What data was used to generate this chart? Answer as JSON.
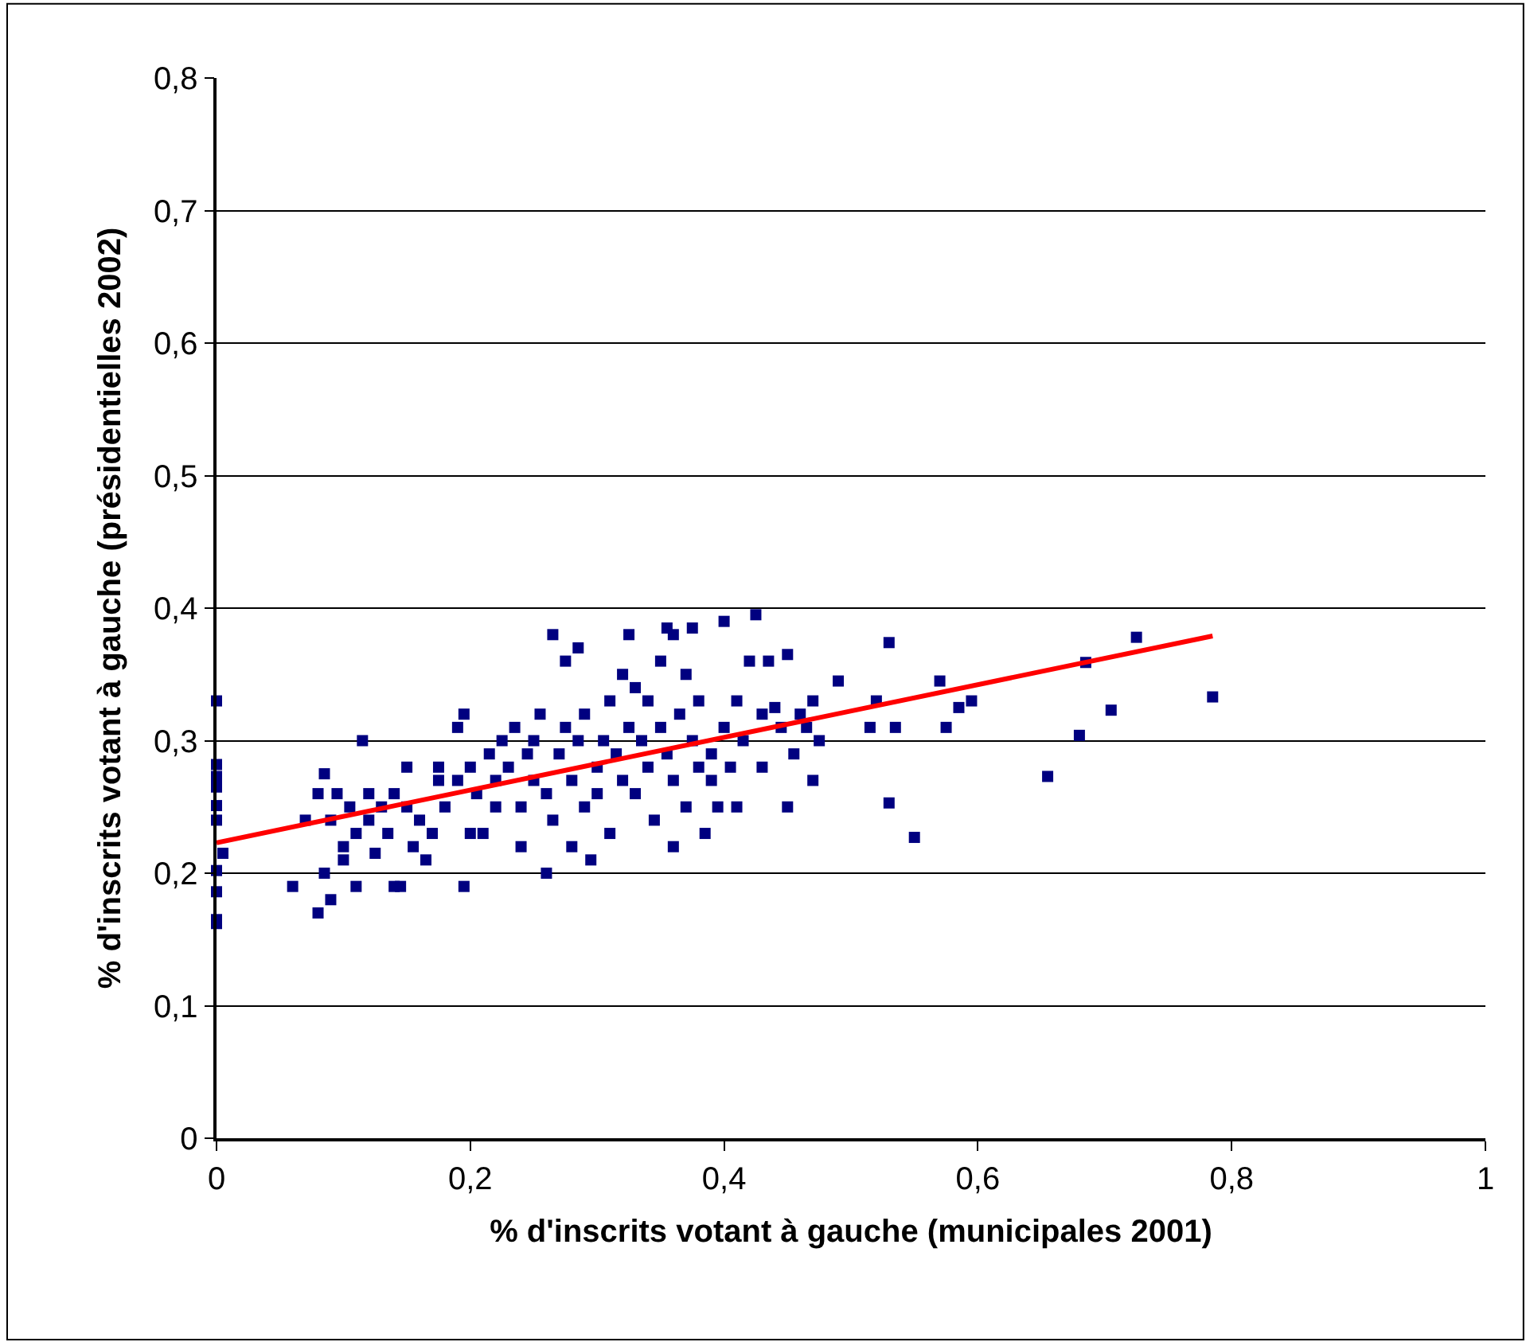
{
  "chart_data": {
    "type": "scatter",
    "xlabel": "% d'inscrits votant à gauche (municipales 2001)",
    "ylabel": "% d'inscrits votant à gauche (présidentielles 2002)",
    "xlim": [
      0,
      1
    ],
    "xticks": [
      0,
      {
        "value": 0.2,
        "label": "0,2"
      },
      {
        "value": 0.4,
        "label": "0,4"
      },
      {
        "value": 0.6,
        "label": "0,6"
      },
      {
        "value": 0.8,
        "label": "0,8"
      },
      1
    ],
    "ylim": [
      0,
      0.8
    ],
    "yticks": [
      0,
      {
        "value": 0.1,
        "label": "0,1"
      },
      {
        "value": 0.2,
        "label": "0,2"
      },
      {
        "value": 0.3,
        "label": "0,3"
      },
      {
        "value": 0.4,
        "label": "0,4"
      },
      {
        "value": 0.5,
        "label": "0,5"
      },
      {
        "value": 0.6,
        "label": "0,6"
      },
      {
        "value": 0.7,
        "label": "0,7"
      },
      {
        "value": 0.8,
        "label": "0,8"
      }
    ],
    "grid": "y",
    "marker": "square",
    "series": [
      {
        "color": "#000080",
        "x": [
          0,
          0,
          0,
          0,
          0,
          0,
          0.005,
          0,
          0,
          0,
          0,
          0.06,
          0.07,
          0.08,
          0.08,
          0.085,
          0.09,
          0.09,
          0.085,
          0.095,
          0.1,
          0.1,
          0.105,
          0.11,
          0.11,
          0.115,
          0.12,
          0.12,
          0.125,
          0.13,
          0.135,
          0.14,
          0.145,
          0.14,
          0.15,
          0.15,
          0.155,
          0.16,
          0.165,
          0.17,
          0.175,
          0.175,
          0.18,
          0.19,
          0.19,
          0.195,
          0.195,
          0.2,
          0.2,
          0.205,
          0.21,
          0.215,
          0.22,
          0.22,
          0.225,
          0.23,
          0.235,
          0.24,
          0.24,
          0.245,
          0.25,
          0.25,
          0.255,
          0.26,
          0.26,
          0.265,
          0.265,
          0.27,
          0.275,
          0.275,
          0.28,
          0.28,
          0.285,
          0.285,
          0.29,
          0.29,
          0.295,
          0.3,
          0.3,
          0.305,
          0.31,
          0.31,
          0.315,
          0.32,
          0.32,
          0.325,
          0.325,
          0.33,
          0.33,
          0.335,
          0.34,
          0.34,
          0.345,
          0.35,
          0.35,
          0.355,
          0.355,
          0.36,
          0.36,
          0.36,
          0.365,
          0.37,
          0.37,
          0.375,
          0.375,
          0.38,
          0.38,
          0.385,
          0.39,
          0.39,
          0.395,
          0.4,
          0.4,
          0.405,
          0.41,
          0.41,
          0.415,
          0.42,
          0.425,
          0.43,
          0.43,
          0.435,
          0.44,
          0.445,
          0.45,
          0.45,
          0.455,
          0.46,
          0.465,
          0.47,
          0.47,
          0.475,
          0.49,
          0.515,
          0.52,
          0.53,
          0.53,
          0.535,
          0.55,
          0.57,
          0.575,
          0.585,
          0.595,
          0.655,
          0.68,
          0.685,
          0.705,
          0.725,
          0.785
        ],
        "values": [
          0.33,
          0.282,
          0.273,
          0.265,
          0.251,
          0.24,
          0.215,
          0.202,
          0.186,
          0.165,
          0.162,
          0.19,
          0.24,
          0.26,
          0.17,
          0.2,
          0.18,
          0.24,
          0.275,
          0.26,
          0.21,
          0.22,
          0.25,
          0.19,
          0.23,
          0.3,
          0.26,
          0.24,
          0.215,
          0.25,
          0.23,
          0.19,
          0.19,
          0.26,
          0.25,
          0.28,
          0.22,
          0.24,
          0.21,
          0.23,
          0.28,
          0.27,
          0.25,
          0.27,
          0.31,
          0.32,
          0.19,
          0.28,
          0.23,
          0.26,
          0.23,
          0.29,
          0.25,
          0.27,
          0.3,
          0.28,
          0.31,
          0.25,
          0.22,
          0.29,
          0.27,
          0.3,
          0.32,
          0.26,
          0.2,
          0.24,
          0.38,
          0.29,
          0.36,
          0.31,
          0.27,
          0.22,
          0.37,
          0.3,
          0.32,
          0.25,
          0.21,
          0.28,
          0.26,
          0.3,
          0.33,
          0.23,
          0.29,
          0.35,
          0.27,
          0.31,
          0.38,
          0.34,
          0.26,
          0.3,
          0.33,
          0.28,
          0.24,
          0.31,
          0.36,
          0.385,
          0.29,
          0.38,
          0.27,
          0.22,
          0.32,
          0.35,
          0.25,
          0.385,
          0.3,
          0.28,
          0.33,
          0.23,
          0.27,
          0.29,
          0.25,
          0.31,
          0.39,
          0.28,
          0.33,
          0.25,
          0.3,
          0.36,
          0.395,
          0.32,
          0.28,
          0.36,
          0.325,
          0.31,
          0.365,
          0.25,
          0.29,
          0.32,
          0.31,
          0.33,
          0.27,
          0.3,
          0.345,
          0.31,
          0.33,
          0.374,
          0.253,
          0.31,
          0.227,
          0.345,
          0.31,
          0.325,
          0.33,
          0.273,
          0.304,
          0.359,
          0.323,
          0.378,
          0.333
        ]
      },
      {
        "type": "line",
        "color": "#ff0000",
        "marker": "none",
        "x": [
          0,
          0.785
        ],
        "values": [
          0.223,
          0.379
        ]
      }
    ]
  }
}
